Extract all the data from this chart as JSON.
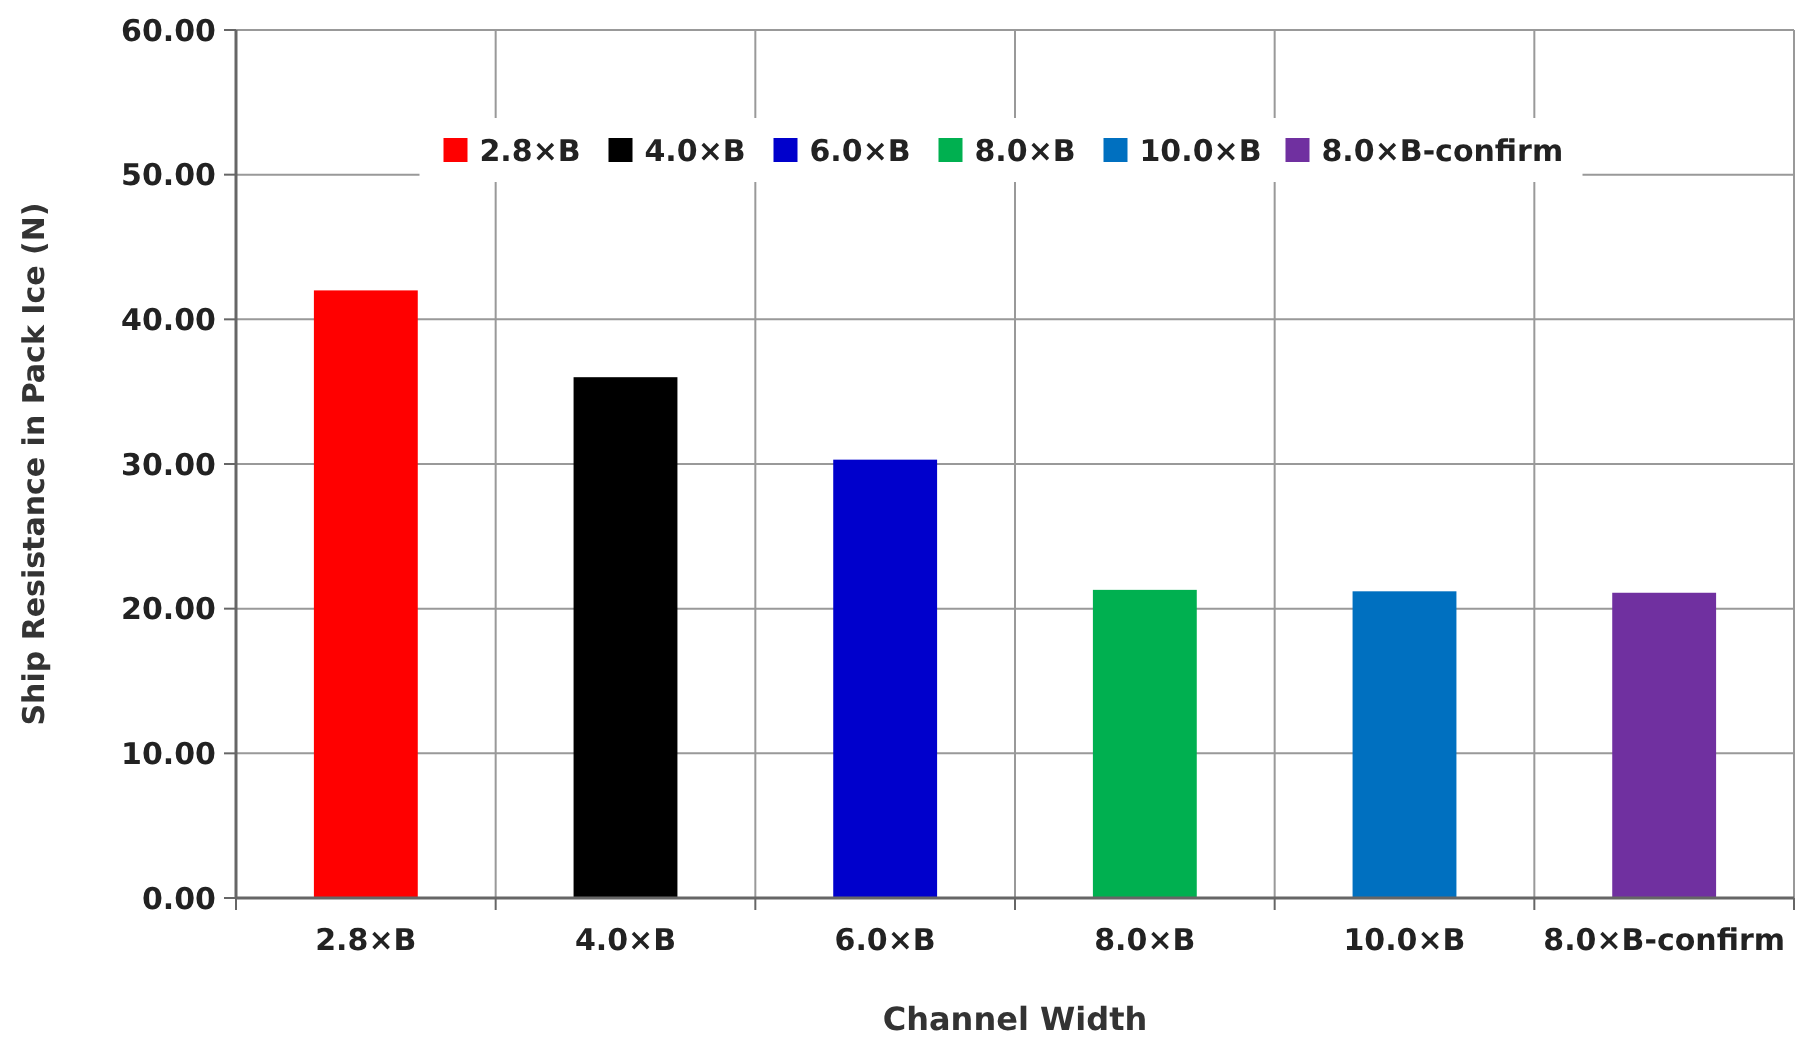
{
  "chart_data": {
    "type": "bar",
    "xlabel": "Channel Width",
    "ylabel": "Ship Resistance in Pack Ice (N)",
    "categories": [
      "2.8×B",
      "4.0×B",
      "6.0×B",
      "8.0×B",
      "10.0×B",
      "8.0×B-confirm"
    ],
    "series": [
      {
        "name": "2.8×B",
        "color": "#ff0000",
        "values": [
          42.0,
          null,
          null,
          null,
          null,
          null
        ]
      },
      {
        "name": "4.0×B",
        "color": "#000000",
        "values": [
          null,
          36.0,
          null,
          null,
          null,
          null
        ]
      },
      {
        "name": "6.0×B",
        "color": "#0000cc",
        "values": [
          null,
          null,
          30.3,
          null,
          null,
          null
        ]
      },
      {
        "name": "8.0×B",
        "color": "#00b050",
        "values": [
          null,
          null,
          null,
          21.3,
          null,
          null
        ]
      },
      {
        "name": "10.0×B",
        "color": "#0070c0",
        "values": [
          null,
          null,
          null,
          null,
          21.2,
          null
        ]
      },
      {
        "name": "8.0×B-confirm",
        "color": "#7030a0",
        "values": [
          null,
          null,
          null,
          null,
          null,
          21.1
        ]
      }
    ],
    "stacked": true,
    "ylim": [
      0,
      60
    ],
    "yticks": [
      {
        "value": 0,
        "label": "0.00"
      },
      {
        "value": 10,
        "label": "10.00"
      },
      {
        "value": 20,
        "label": "20.00"
      },
      {
        "value": 30,
        "label": "30.00"
      },
      {
        "value": 40,
        "label": "40.00"
      },
      {
        "value": 50,
        "label": "50.00"
      },
      {
        "value": 60,
        "label": "60.00"
      }
    ],
    "grid": true,
    "legend": "top"
  }
}
